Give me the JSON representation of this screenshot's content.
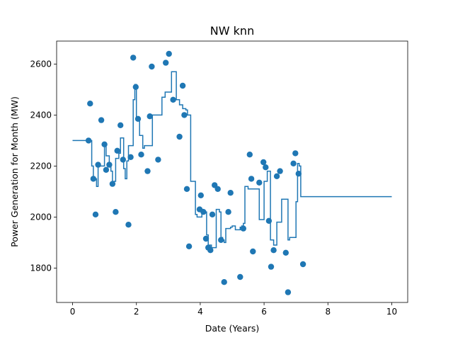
{
  "chart_data": {
    "type": "line+scatter",
    "title": "NW knn",
    "xlabel": "Date (Years)",
    "ylabel": "Power Generation for Month (MW)",
    "xlim": [
      -0.5,
      10.5
    ],
    "ylim": [
      1665,
      2690
    ],
    "xticks": [
      0,
      2,
      4,
      6,
      8,
      10
    ],
    "yticks": [
      1800,
      2000,
      2200,
      2400,
      2600
    ],
    "grid": false,
    "colors": {
      "line": "#1f77b4",
      "points": "#1f77b4"
    },
    "step_line": {
      "x": [
        0,
        0.55,
        0.6,
        0.65,
        0.75,
        0.8,
        1.0,
        1.05,
        1.15,
        1.2,
        1.25,
        1.3,
        1.35,
        1.45,
        1.5,
        1.6,
        1.65,
        1.7,
        1.75,
        1.8,
        1.9,
        1.95,
        2.0,
        2.05,
        2.1,
        2.2,
        2.25,
        2.35,
        2.5,
        2.7,
        2.8,
        2.9,
        3.0,
        3.1,
        3.15,
        3.25,
        3.35,
        3.45,
        3.55,
        3.6,
        3.7,
        3.75,
        3.85,
        3.9,
        4.05,
        4.1,
        4.15,
        4.2,
        4.25,
        4.35,
        4.5,
        4.6,
        4.65,
        4.7,
        4.75,
        4.8,
        4.95,
        5.0,
        5.05,
        5.1,
        5.25,
        5.3,
        5.35,
        5.4,
        5.5,
        5.55,
        5.7,
        5.85,
        6.0,
        6.1,
        6.15,
        6.2,
        6.3,
        6.4,
        6.45,
        6.55,
        6.65,
        6.75,
        6.8,
        6.85,
        7.0,
        7.05,
        7.1,
        7.15,
        10.0
      ],
      "y": [
        2300,
        2300,
        2200,
        2150,
        2120,
        2200,
        2280,
        2240,
        2200,
        2180,
        2130,
        2140,
        2230,
        2250,
        2310,
        2190,
        2150,
        2220,
        2280,
        2280,
        2460,
        2520,
        2385,
        2390,
        2320,
        2270,
        2280,
        2280,
        2400,
        2400,
        2470,
        2490,
        2490,
        2570,
        2570,
        2460,
        2440,
        2425,
        2420,
        2400,
        2140,
        2140,
        2010,
        2000,
        2030,
        2020,
        2020,
        1930,
        1890,
        1880,
        2030,
        2020,
        1920,
        1910,
        1900,
        1955,
        1960,
        1965,
        1965,
        1950,
        1960,
        1965,
        1975,
        2120,
        2110,
        2110,
        2110,
        1990,
        2140,
        2180,
        2180,
        1910,
        1890,
        1980,
        1980,
        2070,
        2070,
        1910,
        1920,
        1920,
        2060,
        2210,
        2200,
        2080,
        2080
      ]
    },
    "points": {
      "x": [
        0.5,
        0.55,
        0.65,
        0.72,
        0.8,
        0.9,
        1.0,
        1.05,
        1.15,
        1.25,
        1.35,
        1.4,
        1.5,
        1.58,
        1.75,
        1.82,
        1.9,
        1.98,
        2.05,
        2.15,
        2.35,
        2.42,
        2.48,
        2.68,
        2.92,
        3.02,
        3.15,
        3.35,
        3.45,
        3.5,
        3.58,
        3.65,
        3.98,
        4.02,
        4.1,
        4.18,
        4.25,
        4.32,
        4.38,
        4.45,
        4.55,
        4.65,
        4.75,
        4.88,
        4.95,
        5.25,
        5.35,
        5.55,
        5.6,
        5.65,
        5.85,
        5.98,
        6.05,
        6.15,
        6.22,
        6.3,
        6.4,
        6.5,
        6.68,
        6.75,
        6.92,
        6.98,
        7.08,
        7.22
      ],
      "y": [
        2300,
        2445,
        2150,
        2010,
        2205,
        2380,
        2285,
        2185,
        2205,
        2130,
        2020,
        2260,
        2360,
        2225,
        1970,
        2235,
        2625,
        2510,
        2385,
        2245,
        2180,
        2395,
        2590,
        2225,
        2605,
        2640,
        2460,
        2315,
        2515,
        2400,
        2110,
        1885,
        2030,
        2085,
        2020,
        1915,
        1880,
        1870,
        2010,
        2125,
        2110,
        1910,
        1745,
        2020,
        2095,
        1765,
        1955,
        2245,
        2150,
        1865,
        2135,
        2215,
        2195,
        1985,
        1805,
        1870,
        2160,
        2180,
        1860,
        1705,
        2210,
        2250,
        2170,
        1815
      ]
    }
  }
}
